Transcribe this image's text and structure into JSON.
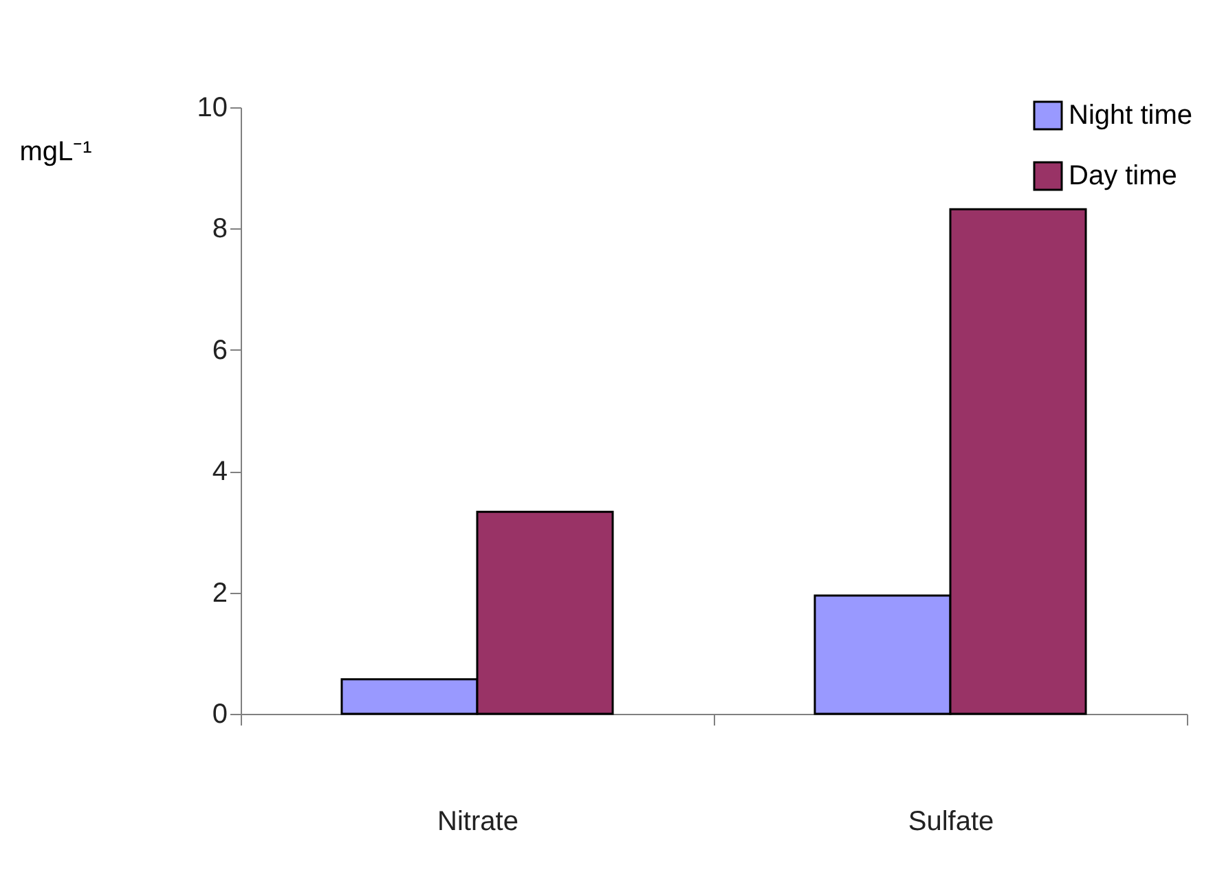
{
  "chart_data": {
    "type": "bar",
    "categories": [
      "Nitrate",
      "Sulfate"
    ],
    "series": [
      {
        "name": "Night time",
        "color": "#9999ff",
        "values": [
          0.57,
          1.95
        ]
      },
      {
        "name": "Day time",
        "color": "#993366",
        "values": [
          3.33,
          8.32
        ]
      }
    ],
    "ylabel": "mgL⁻¹",
    "ylim": [
      0,
      10
    ],
    "yticks": [
      0,
      2,
      4,
      6,
      8,
      10
    ],
    "grid": false,
    "legend": "top right"
  }
}
